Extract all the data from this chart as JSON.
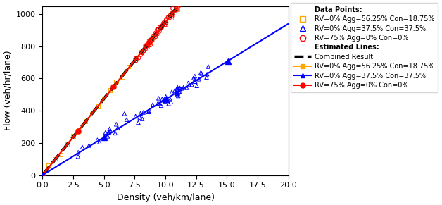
{
  "xlabel": "Density (veh/km/lane)",
  "ylabel": "Flow (veh/hr/lane)",
  "xlim": [
    0,
    20
  ],
  "ylim": [
    0,
    1050
  ],
  "xticks": [
    0.0,
    2.5,
    5.0,
    7.5,
    10.0,
    12.5,
    15.0,
    17.5,
    20.0
  ],
  "yticks": [
    0,
    200,
    400,
    600,
    800,
    1000
  ],
  "orange_line_slope": 95.0,
  "blue_line_slope": 47.0,
  "red_line_slope": 95.0,
  "combined_line_slope": 95.0,
  "orange_color": "#FFA500",
  "blue_color": "#0000FF",
  "red_color": "#FF0000",
  "black_color": "#000000",
  "legend_data_title": "Data Points:",
  "legend_line_title": "Estimated Lines:",
  "legend_orange_label": "RV=0% Agg=56.25% Con=18.75%",
  "legend_blue_label": "RV=0% Agg=37.5% Con=37.5%",
  "legend_red_label": "RV=75% Agg=0% Con=0%",
  "legend_combined_label": "Combined Result",
  "orange_scatter_seed": 10,
  "blue_scatter_seed": 20,
  "red_scatter_seed": 30,
  "fig_width": 6.28,
  "fig_height": 2.91,
  "dpi": 100
}
